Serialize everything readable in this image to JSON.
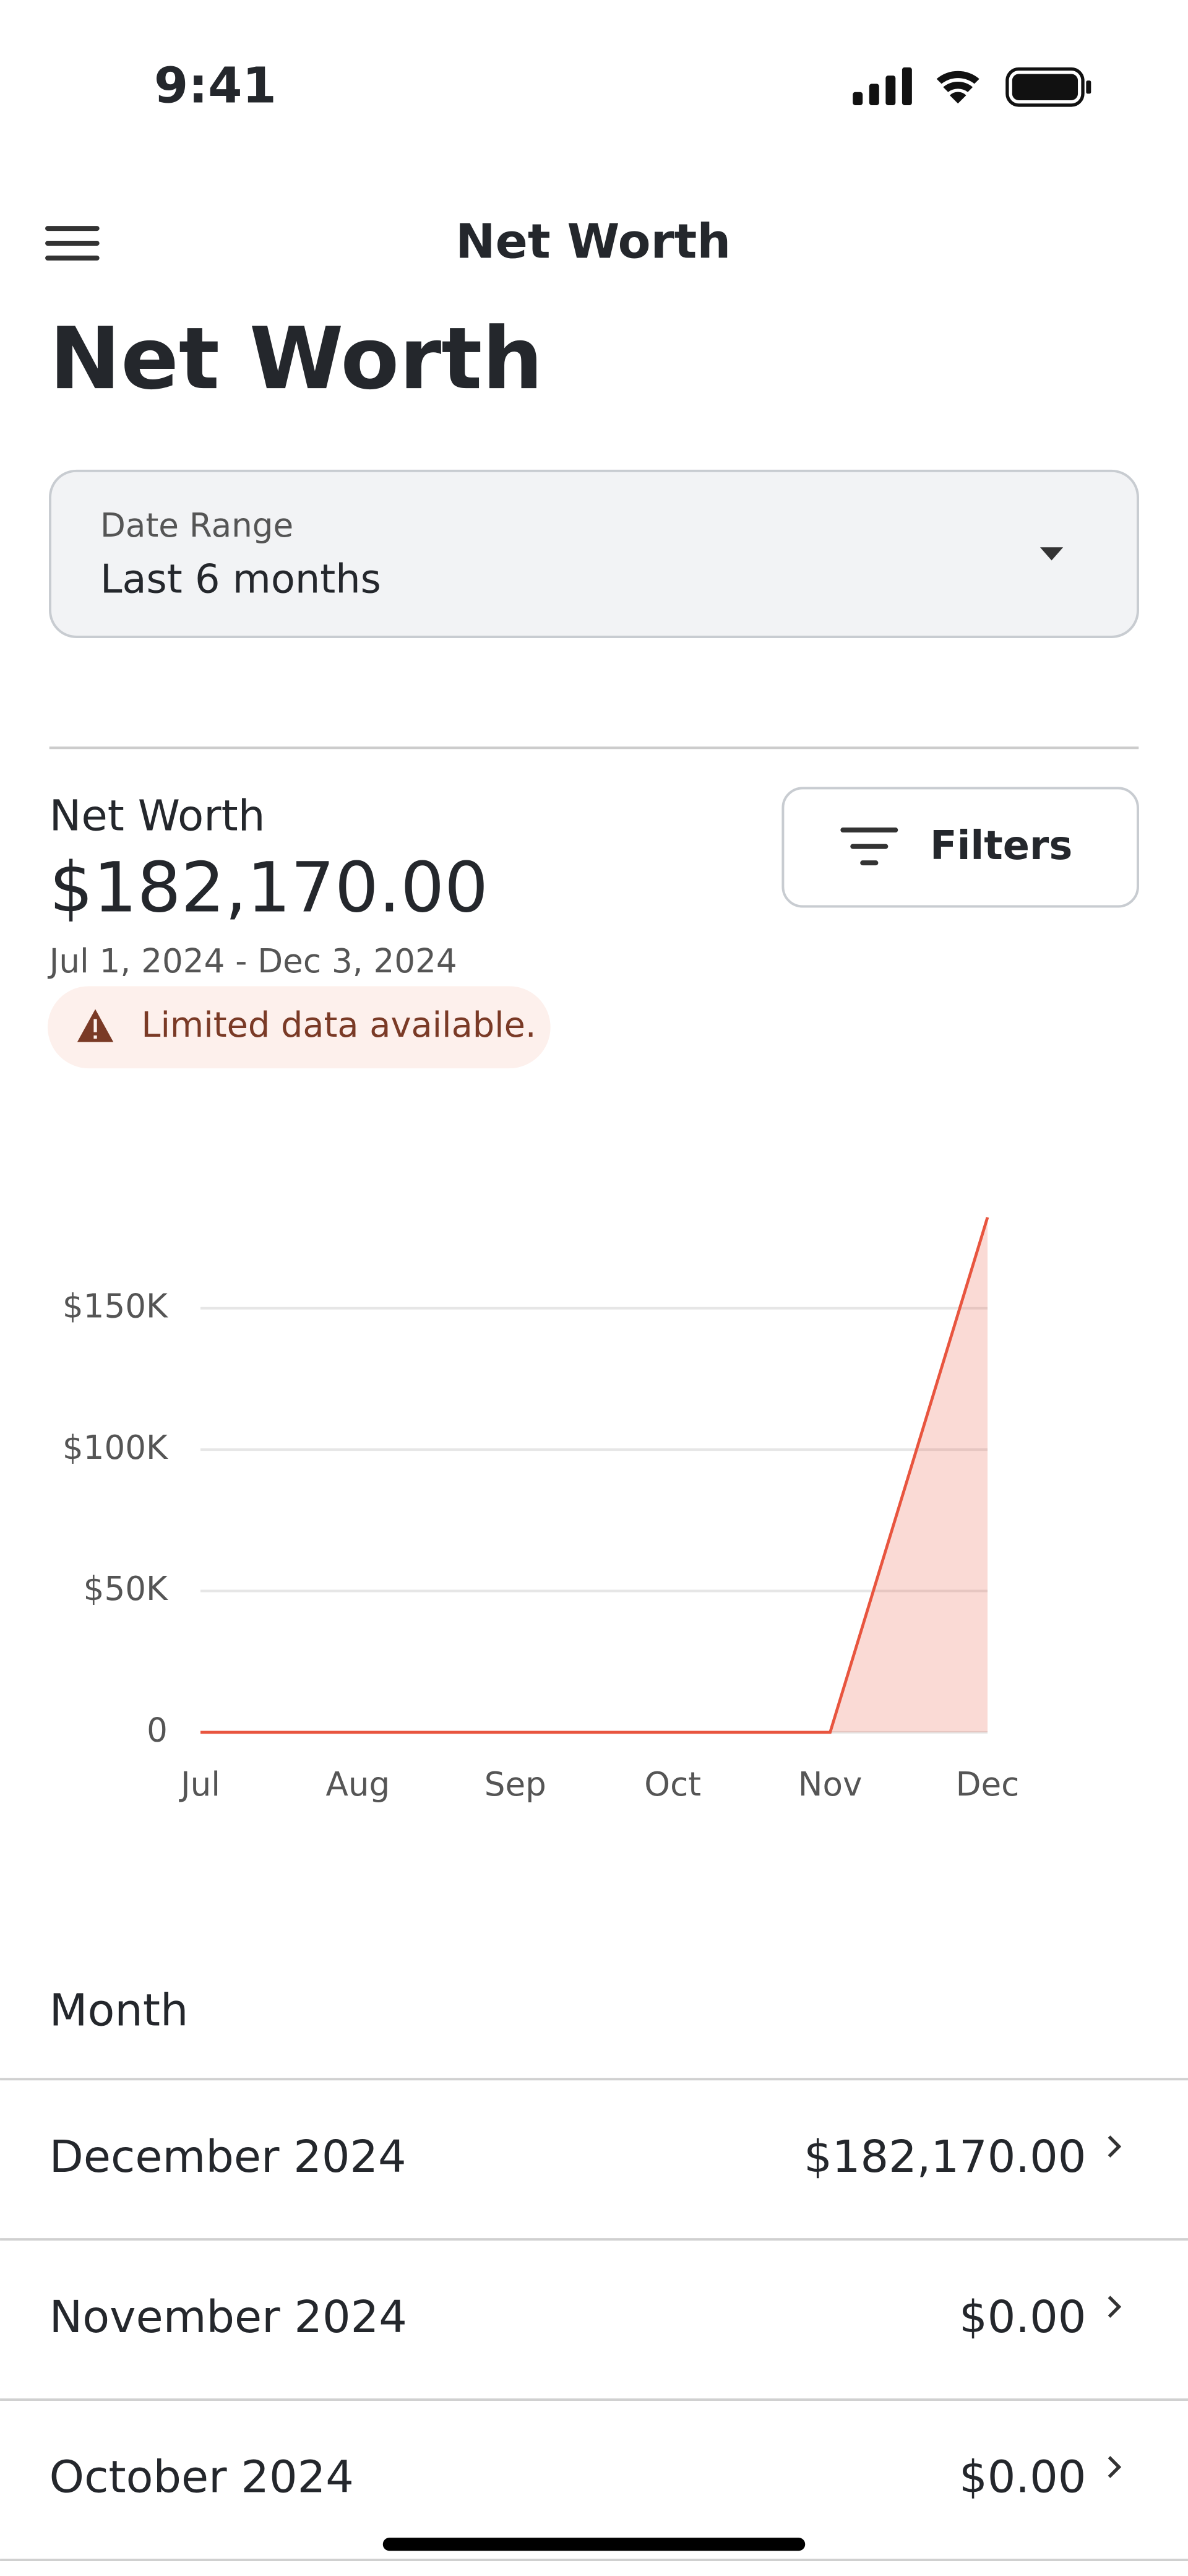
{
  "status_bar": {
    "time": "9:41"
  },
  "nav": {
    "title": "Net Worth"
  },
  "heading": "Net Worth",
  "date_range": {
    "label": "Date Range",
    "value": "Last 6 months"
  },
  "summary": {
    "label": "Net Worth",
    "amount": "$182,170.00",
    "period": "Jul 1, 2024 - Dec 3, 2024",
    "warning": "Limited data available.",
    "filters": "Filters"
  },
  "chart_data": {
    "type": "area",
    "categories": [
      "Jul",
      "Aug",
      "Sep",
      "Oct",
      "Nov",
      "Dec"
    ],
    "series": [
      {
        "color": "#e8553f",
        "values": [
          0,
          0,
          0,
          0,
          0,
          182170
        ]
      }
    ],
    "ylim": [
      0,
      190000
    ],
    "yticks": [
      0,
      {
        "value": 50000,
        "label": "$50K"
      },
      {
        "value": 100000,
        "label": "$100K"
      },
      {
        "value": 150000,
        "label": "$150K"
      }
    ],
    "grid": true
  },
  "table": {
    "header": "Month",
    "rows": [
      [
        "December 2024",
        "$182,170.00"
      ],
      [
        "November 2024",
        "$0.00"
      ],
      [
        "October 2024",
        "$0.00"
      ]
    ]
  }
}
